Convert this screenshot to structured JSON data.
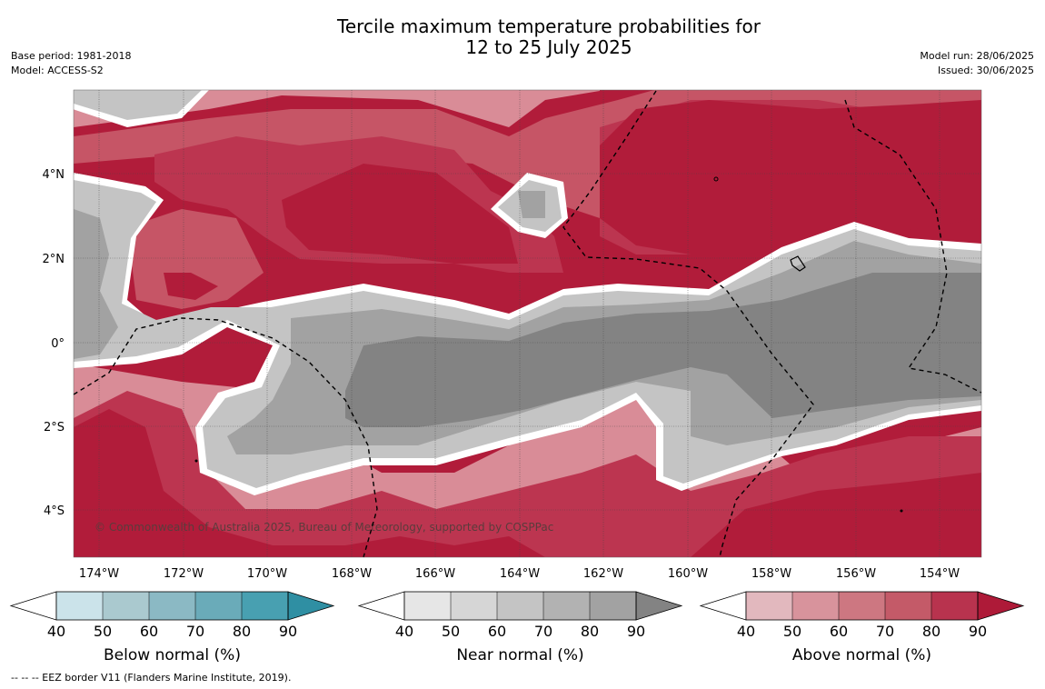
{
  "title": {
    "line1": "Tercile maximum temperature probabilities for",
    "line2": "12 to 25 July 2025"
  },
  "meta_left": {
    "base_period": "Base period: 1981-2018",
    "model": "Model: ACCESS-S2"
  },
  "meta_right": {
    "model_run": "Model run: 28/06/2025",
    "issued": "Issued: 30/06/2025"
  },
  "map": {
    "copyright": "© Commonwealth of Australia 2025, Bureau of Meteorology, supported by COSPPac",
    "lon_ticks": [
      "174°W",
      "172°W",
      "170°W",
      "168°W",
      "166°W",
      "164°W",
      "162°W",
      "160°W",
      "158°W",
      "156°W",
      "154°W"
    ],
    "lat_ticks": [
      "4°N",
      "2°N",
      "0°",
      "2°S",
      "4°S"
    ],
    "colors": {
      "near_dark": "#838383",
      "near_mid": "#a2a2a2",
      "near_light": "#c4c4c4",
      "above_max": "#b11c3a",
      "above_high": "#bc3550",
      "above_mid": "#c65566",
      "above_low": "#d98c97"
    }
  },
  "colorbars": [
    {
      "id": "below",
      "title": "Below normal (%)",
      "ticks": [
        "40",
        "50",
        "60",
        "70",
        "80",
        "90"
      ],
      "colors": [
        "#ffffff",
        "#cbe3ea",
        "#aac9cf",
        "#8bb9c4",
        "#6aabb9",
        "#48a0b1",
        "#2f8fa3"
      ]
    },
    {
      "id": "near",
      "title": "Near normal (%)",
      "ticks": [
        "40",
        "50",
        "60",
        "70",
        "80",
        "90"
      ],
      "colors": [
        "#ffffff",
        "#e6e6e6",
        "#d6d6d6",
        "#c4c4c4",
        "#b2b2b2",
        "#a2a2a2",
        "#838383"
      ]
    },
    {
      "id": "above",
      "title": "Above normal (%)",
      "ticks": [
        "40",
        "50",
        "60",
        "70",
        "80",
        "90"
      ],
      "colors": [
        "#ffffff",
        "#e2b8be",
        "#d8939c",
        "#cd7781",
        "#c45a68",
        "#b8334e",
        "#ae1a38"
      ]
    }
  ],
  "footnote": "--  --  -- EEZ border V11 (Flanders Marine Institute, 2019)."
}
